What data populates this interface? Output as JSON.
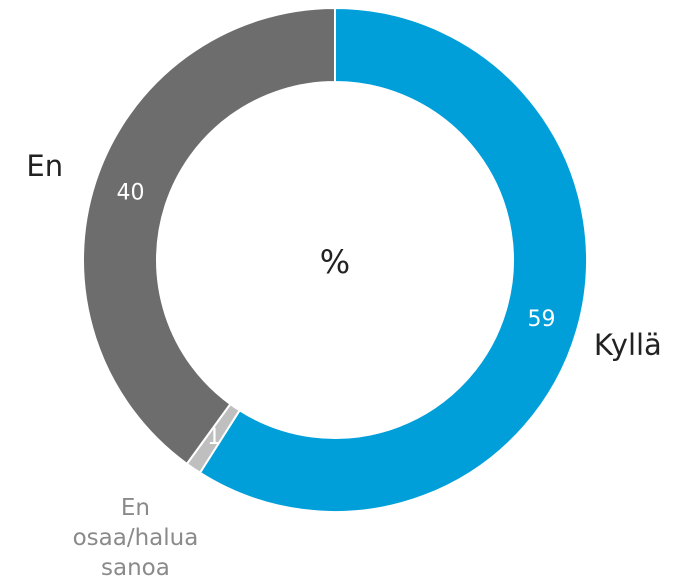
{
  "chart_data": {
    "type": "donut",
    "title": "%",
    "categories": [
      "Kyllä",
      "En osaa/halua sanoa",
      "En"
    ],
    "values": [
      59,
      1,
      40
    ],
    "colors": [
      "#009fda",
      "#bfbfbf",
      "#6d6d6d"
    ],
    "label_colors": [
      "#222222",
      "#8a8a8a",
      "#222222"
    ]
  }
}
